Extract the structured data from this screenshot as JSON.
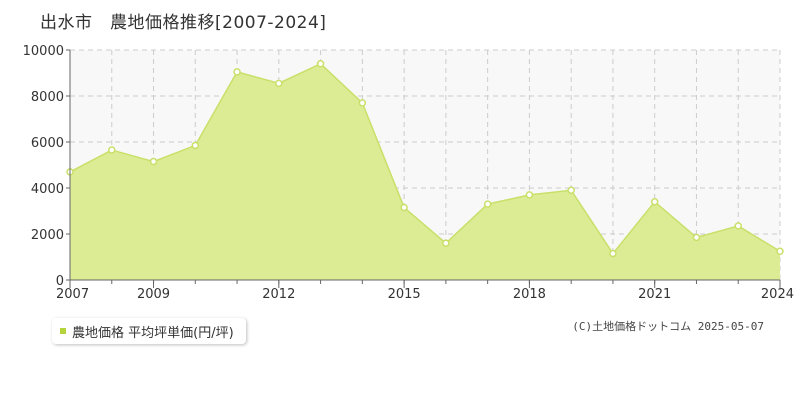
{
  "title": "出水市　農地価格推移[2007-2024]",
  "copyright": "(C)土地価格ドットコム 2025-05-07",
  "colors": {
    "fill": "#dbec94",
    "line": "#c8e06a",
    "legend": "#b5d43b",
    "grid": "#cccccc",
    "plot_bg": "#f8f8f8"
  },
  "chart_data": {
    "type": "area",
    "title": "出水市　農地価格推移[2007-2024]",
    "xlabel": "",
    "ylabel": "",
    "xlim": [
      2007,
      2024
    ],
    "ylim": [
      0,
      10000
    ],
    "xticks": [
      2007,
      2009,
      2012,
      2015,
      2018,
      2021,
      2024
    ],
    "yticks": [
      0,
      2000,
      4000,
      6000,
      8000,
      10000
    ],
    "grid": true,
    "legend_position": "bottom-left",
    "series": [
      {
        "name": "農地価格 平均坪単価(円/坪)",
        "x": [
          2007,
          2008,
          2009,
          2010,
          2011,
          2012,
          2013,
          2014,
          2015,
          2016,
          2017,
          2018,
          2019,
          2020,
          2021,
          2022,
          2023,
          2024
        ],
        "values": [
          4700,
          5650,
          5150,
          5850,
          9050,
          8550,
          9400,
          7700,
          3150,
          1600,
          3300,
          3700,
          3900,
          1150,
          3400,
          1850,
          2350,
          1250
        ]
      }
    ]
  }
}
